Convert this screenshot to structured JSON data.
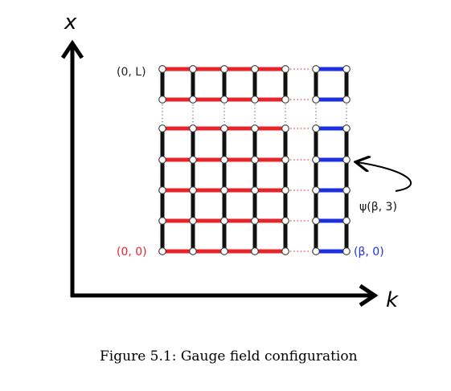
{
  "axes": {
    "x_label": "x",
    "k_label": "k"
  },
  "labels": {
    "top_left": "(0, L)",
    "bottom_left": "(0, 0)",
    "bottom_right": "(β, 0)",
    "annotation": "ψ(β, 3)"
  },
  "caption": "Figure 5.1:  Gauge field configuration",
  "colors": {
    "spatial_link": "#111111",
    "temporal_link": "#e8242b",
    "boundary_link": "#1d2fe0",
    "origin_label": "#e8242b",
    "beta_label": "#1d2fe0",
    "dots": "#e8242b"
  },
  "icons": {
    "site": "open-circle-site-icon",
    "arrow": "curved-arrow-icon"
  }
}
